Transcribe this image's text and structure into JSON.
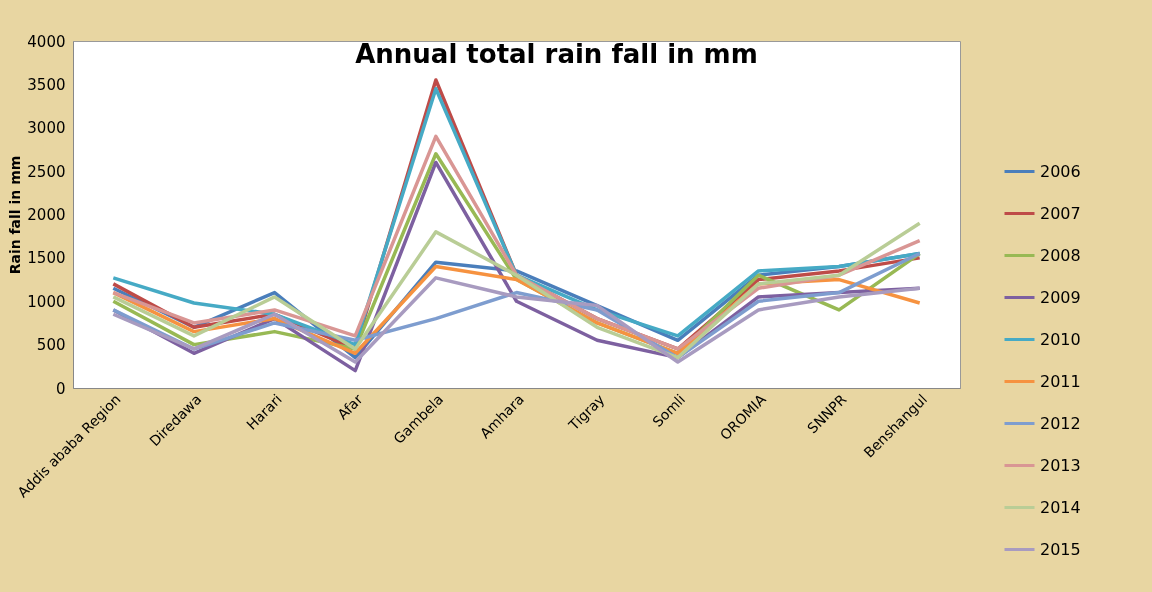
{
  "chart_data": {
    "type": "line",
    "title": "Annual total rain fall in mm",
    "ylabel": "Rain fall in mm",
    "categories": [
      "Addis ababa  Region",
      "Diredawa",
      "Harari",
      "Afar",
      "Gambela",
      "Amhara",
      "Tigray",
      "Somli",
      "OROMIA",
      "SNNPR",
      "Benshangul"
    ],
    "ylim": [
      0,
      4000
    ],
    "yticks": [
      0,
      500,
      1000,
      1500,
      2000,
      2500,
      3000,
      3500,
      4000
    ],
    "grid": false,
    "legend": "right",
    "marker": "none",
    "line_style": "solid",
    "series": [
      {
        "name": "2006",
        "color": "#4a7ebb",
        "values": [
          1150,
          700,
          1100,
          350,
          1450,
          1350,
          950,
          550,
          1300,
          1400,
          1550
        ]
      },
      {
        "name": "2007",
        "color": "#be4b48",
        "values": [
          1200,
          700,
          850,
          450,
          3550,
          1300,
          800,
          450,
          1250,
          1350,
          1500
        ]
      },
      {
        "name": "2008",
        "color": "#98b954",
        "values": [
          1000,
          500,
          650,
          450,
          2700,
          1250,
          750,
          400,
          1300,
          900,
          1550
        ]
      },
      {
        "name": "2009",
        "color": "#7d60a0",
        "values": [
          900,
          400,
          800,
          200,
          2600,
          1000,
          550,
          350,
          1050,
          1100,
          1150
        ]
      },
      {
        "name": "2010",
        "color": "#46aac5",
        "values": [
          1270,
          980,
          850,
          500,
          3450,
          1300,
          900,
          600,
          1350,
          1400,
          1550
        ]
      },
      {
        "name": "2011",
        "color": "#f69240",
        "values": [
          1100,
          650,
          800,
          400,
          1400,
          1250,
          750,
          400,
          1200,
          1250,
          980
        ]
      },
      {
        "name": "2012",
        "color": "#7e9dcf",
        "values": [
          900,
          450,
          750,
          550,
          800,
          1100,
          900,
          350,
          1000,
          1100,
          1550
        ]
      },
      {
        "name": "2013",
        "color": "#d99694",
        "values": [
          1100,
          750,
          900,
          600,
          2900,
          1300,
          800,
          450,
          1150,
          1300,
          1700
        ]
      },
      {
        "name": "2014",
        "color": "#b9cd96",
        "values": [
          1050,
          600,
          1050,
          450,
          1800,
          1300,
          700,
          350,
          1200,
          1300,
          1900
        ]
      },
      {
        "name": "2015",
        "color": "#a89bc0",
        "values": [
          850,
          450,
          850,
          300,
          1270,
          1050,
          950,
          300,
          900,
          1050,
          1150
        ]
      }
    ]
  }
}
